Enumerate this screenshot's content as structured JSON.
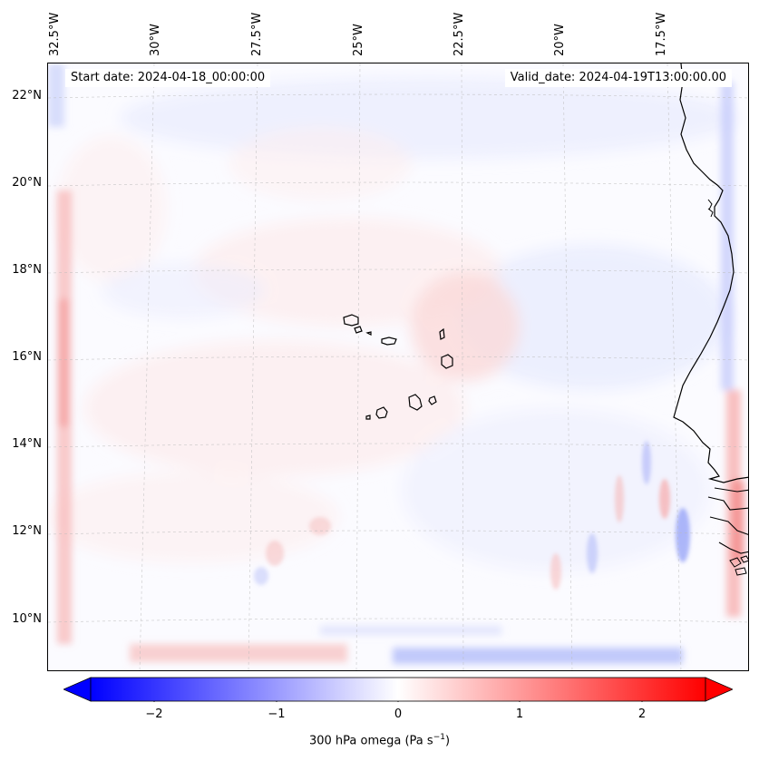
{
  "header": {
    "start_date": "Start date: 2024-04-18_00:00:00",
    "valid_date": "Valid_date: 2024-04-19T13:00:00.00"
  },
  "map": {
    "lon_labels": [
      "32.5°W",
      "30°W",
      "27.5°W",
      "25°W",
      "22.5°W",
      "20°W",
      "17.5°W"
    ],
    "lat_labels": [
      "22°N",
      "20°N",
      "18°N",
      "16°N",
      "14°N",
      "12°N",
      "10°N"
    ],
    "gridlines": true,
    "coastline_color": "#000000",
    "islands": "Cabo Verde archipelago",
    "coast": "West African coast (Senegal, The Gambia, Guinea-Bissau)"
  },
  "colorbar": {
    "variable": "300 hPa omega",
    "unit_base": "Pa s",
    "unit_exp": "−1",
    "tick_labels": [
      "−2",
      "−1",
      "0",
      "1",
      "2"
    ],
    "range": [
      -2.6,
      2.6
    ],
    "extend": "both",
    "cmap": "bwr",
    "negative_color": "#0000ff",
    "positive_color": "#ff0000",
    "center_color": "#ffffff"
  }
}
